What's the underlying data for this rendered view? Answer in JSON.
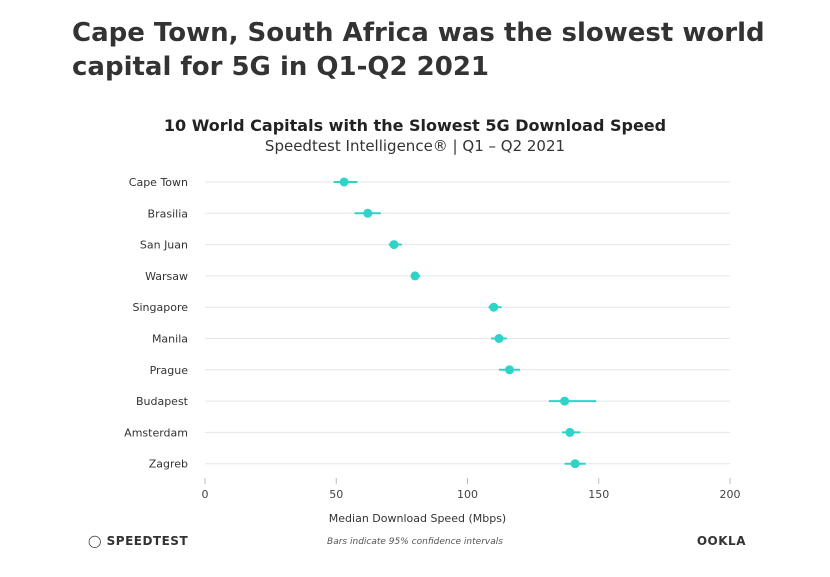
{
  "headline": "Cape Town, South Africa was the slowest world capital for 5G in Q1-Q2 2021",
  "brand_left": "SPEEDTEST",
  "brand_right": "OOKLA",
  "footnote": "Bars indicate 95% confidence intervals",
  "colors": {
    "accent": "#2dd4c7",
    "grid": "#e6e6e6",
    "text": "#333333"
  },
  "chart_data": {
    "type": "scatter",
    "title": "10 World Capitals with the Slowest 5G Download Speed",
    "subtitle": "Speedtest Intelligence® | Q1 – Q2 2021",
    "xlabel": "Median Download Speed (Mbps)",
    "ylabel": "",
    "xlim": [
      0,
      200
    ],
    "xticks": [
      0,
      50,
      100,
      150,
      200
    ],
    "grid": true,
    "categories": [
      "Cape Town",
      "Brasilia",
      "San Juan",
      "Warsaw",
      "Singapore",
      "Manila",
      "Prague",
      "Budapest",
      "Amsterdam",
      "Zagreb"
    ],
    "values": [
      53,
      62,
      72,
      80,
      110,
      112,
      116,
      137,
      139,
      141
    ],
    "ci_low": [
      49,
      57,
      70,
      79,
      108,
      109,
      112,
      131,
      136,
      137
    ],
    "ci_high": [
      58,
      67,
      75,
      82,
      113,
      115,
      120,
      149,
      143,
      145
    ]
  }
}
